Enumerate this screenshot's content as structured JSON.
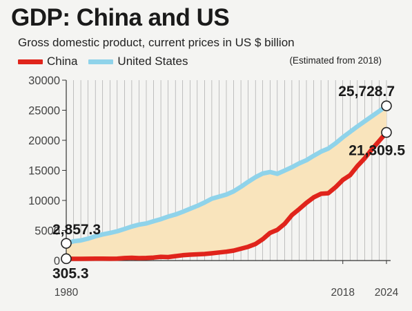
{
  "chart_data": {
    "type": "line",
    "title": "GDP: China and US",
    "subtitle": "Gross domestic product, current prices in US $ billion",
    "note": "(Estimated from 2018)",
    "series": [
      {
        "name": "China",
        "color": "#e0241b",
        "x": [
          1980,
          1981,
          1982,
          1983,
          1984,
          1985,
          1986,
          1987,
          1988,
          1989,
          1990,
          1991,
          1992,
          1993,
          1994,
          1995,
          1996,
          1997,
          1998,
          1999,
          2000,
          2001,
          2002,
          2003,
          2004,
          2005,
          2006,
          2007,
          2008,
          2009,
          2010,
          2011,
          2012,
          2013,
          2014,
          2015,
          2016,
          2017,
          2018,
          2019,
          2020,
          2021,
          2022,
          2023,
          2024
        ],
        "values": [
          305.3,
          290,
          285,
          300,
          315,
          310,
          300,
          320,
          410,
          460,
          400,
          420,
          490,
          620,
          570,
          740,
          880,
          980,
          1030,
          1090,
          1210,
          1340,
          1470,
          1660,
          1960,
          2290,
          2750,
          3550,
          4600,
          5100,
          6100,
          7550,
          8550,
          9600,
          10500,
          11100,
          11200,
          12200,
          13400,
          14200,
          15700,
          17000,
          18500,
          19900,
          21309.5
        ]
      },
      {
        "name": "United States",
        "color": "#8fd3ea",
        "x": [
          1980,
          1981,
          1982,
          1983,
          1984,
          1985,
          1986,
          1987,
          1988,
          1989,
          1990,
          1991,
          1992,
          1993,
          1994,
          1995,
          1996,
          1997,
          1998,
          1999,
          2000,
          2001,
          2002,
          2003,
          2004,
          2005,
          2006,
          2007,
          2008,
          2009,
          2010,
          2011,
          2012,
          2013,
          2014,
          2015,
          2016,
          2017,
          2018,
          2019,
          2020,
          2021,
          2022,
          2023,
          2024
        ],
        "values": [
          2857.3,
          3210,
          3345,
          3640,
          4040,
          4350,
          4590,
          4870,
          5250,
          5660,
          5980,
          6170,
          6540,
          6880,
          7310,
          7660,
          8100,
          8610,
          9090,
          9660,
          10290,
          10630,
          10980,
          11510,
          12270,
          13090,
          13860,
          14480,
          14720,
          14420,
          14960,
          15520,
          16160,
          16690,
          17430,
          18120,
          18620,
          19490,
          20500,
          21400,
          22300,
          23150,
          24000,
          24850,
          25728.7
        ]
      }
    ],
    "fill_between": {
      "color": "#f9e4bc"
    },
    "xlim": [
      1980,
      2024
    ],
    "ylim": [
      0,
      30000
    ],
    "yticks": [
      0,
      5000,
      10000,
      15000,
      20000,
      25000,
      30000
    ],
    "xtick_labels": [
      "1980",
      "2018",
      "2024"
    ],
    "annotations": {
      "us_start": "2,857.3",
      "china_start": "305.3",
      "us_end": "25,728.7",
      "china_end": "21,309.5"
    },
    "grid": "vertical",
    "legend_position": "top-left"
  }
}
